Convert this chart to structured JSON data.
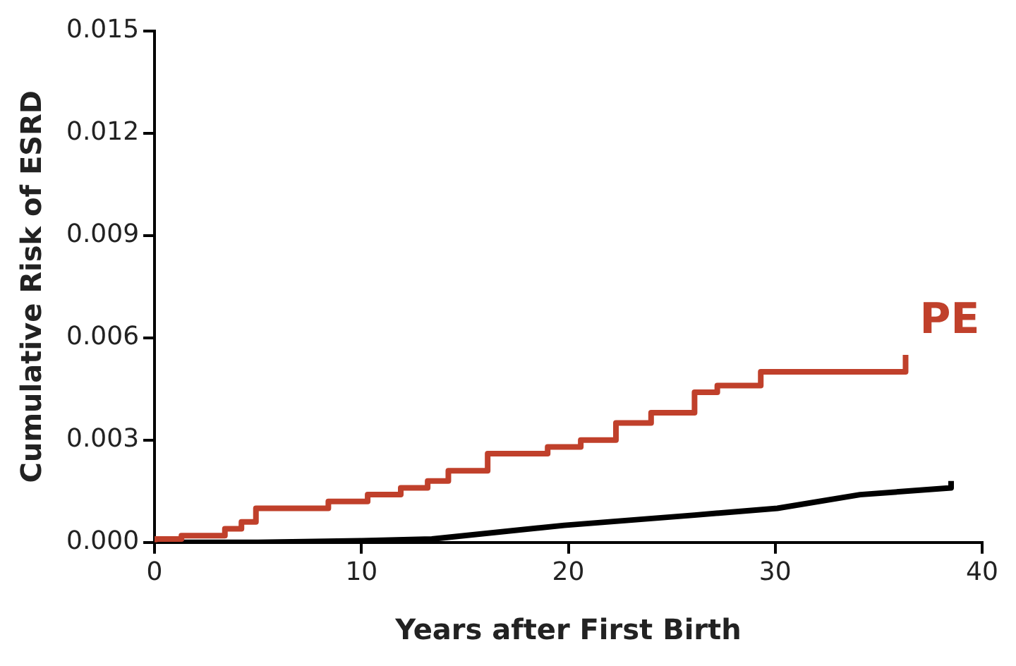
{
  "chart_data": {
    "type": "step",
    "xlabel": "Years after First Birth",
    "ylabel": "Cumulative Risk of ESRD",
    "xlim": [
      0,
      40
    ],
    "xticks": [
      0,
      10,
      20,
      30,
      40
    ],
    "ylim": [
      0,
      0.015
    ],
    "yticks": [
      {
        "value": 0,
        "label": "0.000"
      },
      {
        "value": 0.003,
        "label": "0.003"
      },
      {
        "value": 0.006,
        "label": "0.006"
      },
      {
        "value": 0.009,
        "label": "0.009"
      },
      {
        "value": 0.012,
        "label": "0.012"
      },
      {
        "value": 0.015,
        "label": "0.015"
      }
    ],
    "grid": false,
    "legend": false,
    "marker": "none",
    "series": [
      {
        "name": "PE",
        "color": "#c0402b",
        "x": [
          0,
          1.3,
          3.4,
          4.2,
          4.9,
          8.4,
          10.3,
          11.9,
          13.2,
          14.2,
          16.1,
          19.0,
          20.6,
          22.3,
          24.0,
          26.1,
          27.2,
          29.3,
          31.3,
          36.3,
          36.3
        ],
        "values": [
          0,
          0.0001,
          0.0002,
          0.0004,
          0.0006,
          0.001,
          0.0012,
          0.0014,
          0.0016,
          0.0018,
          0.0021,
          0.0026,
          0.0028,
          0.003,
          0.0035,
          0.0038,
          0.0044,
          0.0046,
          0.005,
          0.005,
          0.0055
        ]
      },
      {
        "type": "line",
        "color": "#000000",
        "x": [
          0,
          5,
          10,
          13.4,
          19.8,
          26.1,
          30.1,
          34.1,
          38.5,
          38.5
        ],
        "values": [
          0,
          0,
          5e-05,
          0.0001,
          0.0005,
          0.0008,
          0.001,
          0.0014,
          0.0016,
          0.0018
        ]
      }
    ]
  }
}
